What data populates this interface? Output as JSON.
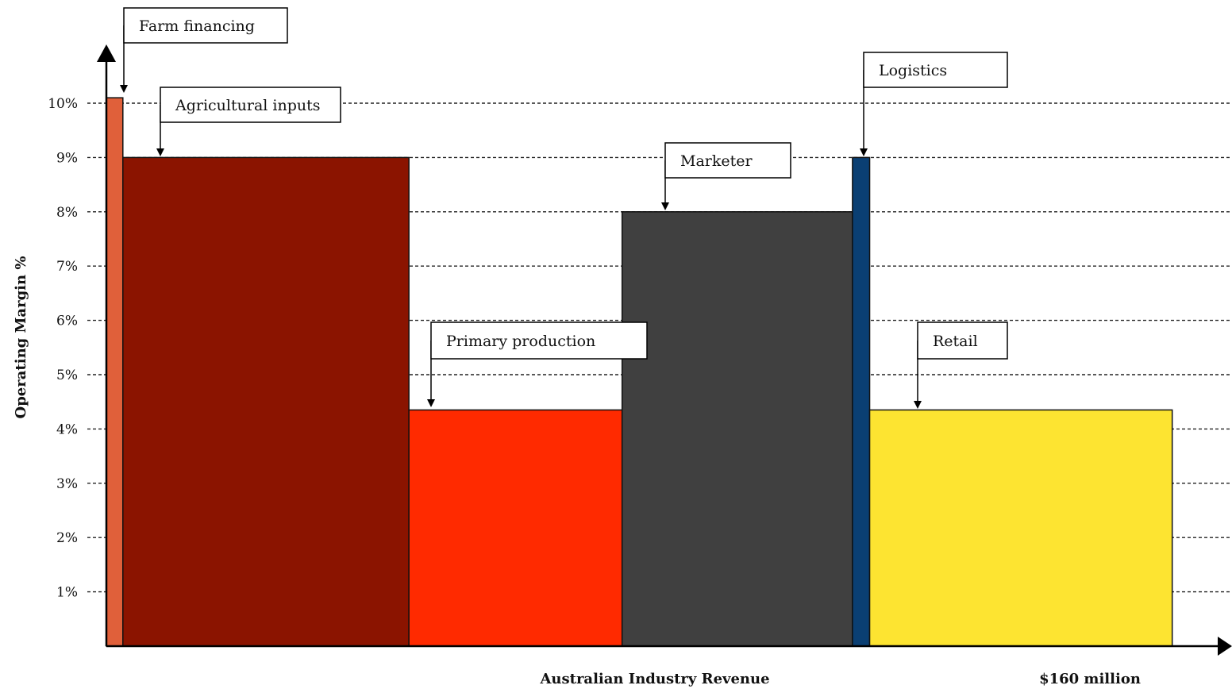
{
  "chart_data": {
    "type": "bar",
    "title": "",
    "xlabel": "Australian Industry Revenue",
    "x_end_label": "$160 million",
    "ylabel": "Operating Margin %",
    "ylim": [
      0,
      10
    ],
    "y_ticks": [
      "1%",
      "2%",
      "3%",
      "4%",
      "5%",
      "6%",
      "7%",
      "8%",
      "9%",
      "10%"
    ],
    "grid": "horizontal dashed",
    "variable_width": true,
    "series": [
      {
        "name": "Farm financing",
        "revenue_start": 0.0,
        "revenue_end": 2.4,
        "margin": 10.1,
        "color": "#e0603a"
      },
      {
        "name": "Agricultural inputs",
        "revenue_start": 2.4,
        "revenue_end": 44.0,
        "margin": 9.0,
        "color": "#8b1400"
      },
      {
        "name": "Primary production",
        "revenue_start": 44.0,
        "revenue_end": 75.0,
        "margin": 4.35,
        "color": "#ff2a00"
      },
      {
        "name": "Marketer",
        "revenue_start": 75.0,
        "revenue_end": 108.5,
        "margin": 8.0,
        "color": "#404040"
      },
      {
        "name": "Logistics",
        "revenue_start": 108.5,
        "revenue_end": 111.0,
        "margin": 9.0,
        "color": "#0a3f73"
      },
      {
        "name": "Retail",
        "revenue_start": 111.0,
        "revenue_end": 155.0,
        "margin": 4.35,
        "color": "#fde431"
      }
    ]
  }
}
